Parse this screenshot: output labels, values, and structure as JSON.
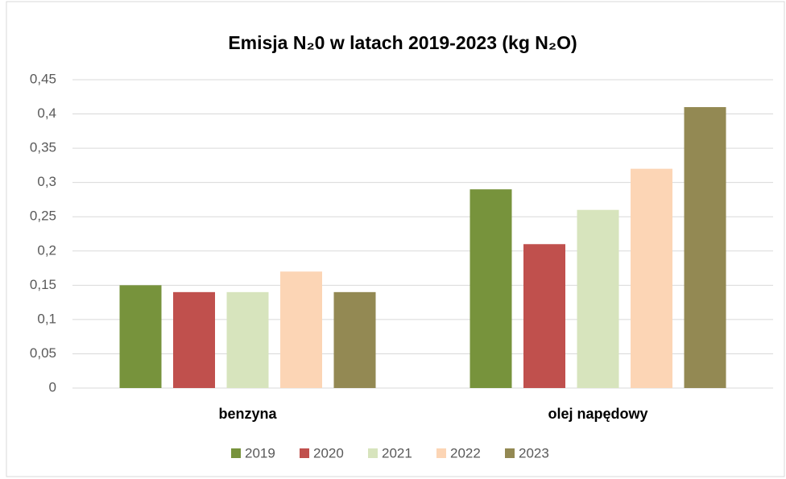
{
  "chart_data": {
    "type": "bar",
    "title": "Emisja N₂0 w latach 2019-2023 (kg N₂O)",
    "categories": [
      "benzyna",
      "olej napędowy"
    ],
    "series": [
      {
        "name": "2019",
        "color": "#77933c",
        "values": [
          0.15,
          0.29
        ]
      },
      {
        "name": "2020",
        "color": "#c0504d",
        "values": [
          0.14,
          0.21
        ]
      },
      {
        "name": "2021",
        "color": "#d7e4bd",
        "values": [
          0.14,
          0.26
        ]
      },
      {
        "name": "2022",
        "color": "#fcd5b5",
        "values": [
          0.17,
          0.32
        ]
      },
      {
        "name": "2023",
        "color": "#938953",
        "values": [
          0.14,
          0.41
        ]
      }
    ],
    "ylim": [
      0,
      0.45
    ],
    "yticks": [
      0,
      {
        "value": 0.05,
        "label": "0,05"
      },
      {
        "value": 0.1,
        "label": "0,1"
      },
      {
        "value": 0.15,
        "label": "0,15"
      },
      {
        "value": 0.2,
        "label": "0,2"
      },
      {
        "value": 0.25,
        "label": "0,25"
      },
      {
        "value": 0.3,
        "label": "0,3"
      },
      {
        "value": 0.35,
        "label": "0,35"
      },
      {
        "value": 0.4,
        "label": "0,4"
      },
      {
        "value": 0.45,
        "label": "0,45"
      }
    ],
    "grid": true,
    "legend": "bottom"
  }
}
